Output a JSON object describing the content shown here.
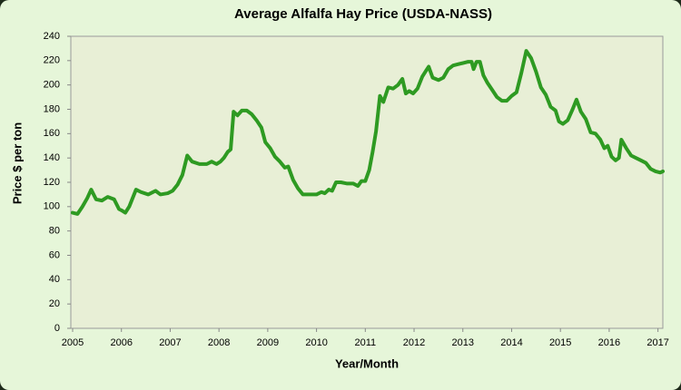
{
  "chart_data": {
    "type": "line",
    "title": "Average Alfalfa Hay Price (USDA-NASS)",
    "x_label": "Year/Month",
    "y_label": "Price $ per ton",
    "x": [
      2005.0,
      2005.1,
      2005.2,
      2005.3,
      2005.38,
      2005.48,
      2005.6,
      2005.72,
      2005.85,
      2005.95,
      2006.0,
      2006.08,
      2006.16,
      2006.22,
      2006.3,
      2006.4,
      2006.55,
      2006.7,
      2006.8,
      2006.95,
      2007.05,
      2007.15,
      2007.25,
      2007.35,
      2007.45,
      2007.6,
      2007.75,
      2007.85,
      2007.95,
      2008.03,
      2008.1,
      2008.18,
      2008.24,
      2008.3,
      2008.38,
      2008.47,
      2008.57,
      2008.67,
      2008.77,
      2008.87,
      2008.95,
      2009.05,
      2009.15,
      2009.25,
      2009.35,
      2009.42,
      2009.52,
      2009.62,
      2009.72,
      2009.85,
      2010.0,
      2010.1,
      2010.17,
      2010.25,
      2010.32,
      2010.4,
      2010.5,
      2010.62,
      2010.75,
      2010.85,
      2010.92,
      2011.0,
      2011.08,
      2011.15,
      2011.22,
      2011.3,
      2011.37,
      2011.47,
      2011.57,
      2011.67,
      2011.76,
      2011.83,
      2011.9,
      2011.98,
      2012.07,
      2012.17,
      2012.25,
      2012.3,
      2012.38,
      2012.5,
      2012.6,
      2012.7,
      2012.8,
      2012.9,
      2013.0,
      2013.1,
      2013.18,
      2013.22,
      2013.28,
      2013.35,
      2013.42,
      2013.5,
      2013.6,
      2013.7,
      2013.8,
      2013.9,
      2014.0,
      2014.1,
      2014.2,
      2014.3,
      2014.4,
      2014.5,
      2014.6,
      2014.7,
      2014.8,
      2014.9,
      2014.97,
      2015.05,
      2015.15,
      2015.25,
      2015.33,
      2015.42,
      2015.52,
      2015.62,
      2015.72,
      2015.82,
      2015.9,
      2015.97,
      2016.05,
      2016.13,
      2016.2,
      2016.25,
      2016.35,
      2016.45,
      2016.55,
      2016.65,
      2016.75,
      2016.85,
      2016.95,
      2017.05,
      2017.1
    ],
    "values": [
      95,
      94,
      100,
      107,
      114,
      106,
      105,
      108,
      106,
      98,
      97,
      95,
      100,
      106,
      114,
      112,
      110,
      113,
      110,
      111,
      113,
      118,
      126,
      142,
      137,
      135,
      135,
      137,
      135,
      137,
      140,
      145,
      147,
      178,
      175,
      179,
      179,
      176,
      171,
      165,
      153,
      148,
      141,
      137,
      132,
      133,
      122,
      115,
      110,
      110,
      110,
      112,
      111,
      114,
      113,
      120,
      120,
      119,
      119,
      117,
      121,
      121,
      130,
      145,
      162,
      191,
      186,
      198,
      197,
      200,
      205,
      193,
      195,
      193,
      197,
      207,
      212,
      215,
      206,
      204,
      206,
      213,
      216,
      217,
      218,
      219,
      219,
      213,
      219,
      219,
      208,
      202,
      196,
      190,
      187,
      187,
      191,
      194,
      210,
      228,
      222,
      211,
      198,
      192,
      182,
      179,
      170,
      168,
      171,
      180,
      188,
      178,
      172,
      161,
      160,
      155,
      148,
      150,
      141,
      138,
      140,
      155,
      148,
      142,
      140,
      138,
      136,
      131,
      129,
      128,
      129
    ],
    "color": "#2e9a22",
    "xlim": [
      2005,
      2017.1
    ],
    "ylim": [
      0,
      240
    ],
    "xticks": [
      2005,
      2006,
      2007,
      2008,
      2009,
      2010,
      2011,
      2012,
      2013,
      2014,
      2015,
      2016,
      2017
    ],
    "yticks": [
      0,
      20,
      40,
      60,
      80,
      100,
      120,
      140,
      160,
      180,
      200,
      220,
      240
    ],
    "grid": false
  }
}
